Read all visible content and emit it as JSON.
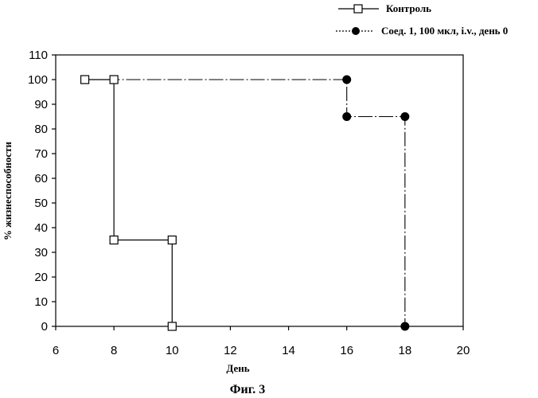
{
  "chart_data": {
    "type": "line",
    "step": true,
    "xlabel": "День",
    "ylabel": "% жизнеспособности",
    "xlim": [
      6,
      20
    ],
    "ylim": [
      0,
      110
    ],
    "x_ticks": [
      6,
      8,
      10,
      12,
      14,
      16,
      18,
      20
    ],
    "y_ticks": [
      0,
      10,
      20,
      30,
      40,
      50,
      60,
      70,
      80,
      90,
      100,
      110
    ],
    "grid": false,
    "legend_position": "top-right",
    "series": [
      {
        "name": "Контроль",
        "marker": "open-square",
        "line_style": "solid",
        "points": [
          {
            "x": 7,
            "y": 100
          },
          {
            "x": 8,
            "y": 100
          },
          {
            "x": 8,
            "y": 35
          },
          {
            "x": 10,
            "y": 35
          },
          {
            "x": 10,
            "y": 0
          }
        ]
      },
      {
        "name": "Соед. 1, 100 мкл, i.v., день 0",
        "marker": "filled-circle",
        "line_style": "dashed",
        "points": [
          {
            "x": 7,
            "y": 100
          },
          {
            "x": 16,
            "y": 100
          },
          {
            "x": 16,
            "y": 85
          },
          {
            "x": 18,
            "y": 85
          },
          {
            "x": 18,
            "y": 0
          }
        ],
        "marker_points": [
          {
            "x": 16,
            "y": 100
          },
          {
            "x": 16,
            "y": 85
          },
          {
            "x": 18,
            "y": 85
          },
          {
            "x": 18,
            "y": 0
          }
        ]
      }
    ]
  },
  "caption": "Фиг. 3"
}
